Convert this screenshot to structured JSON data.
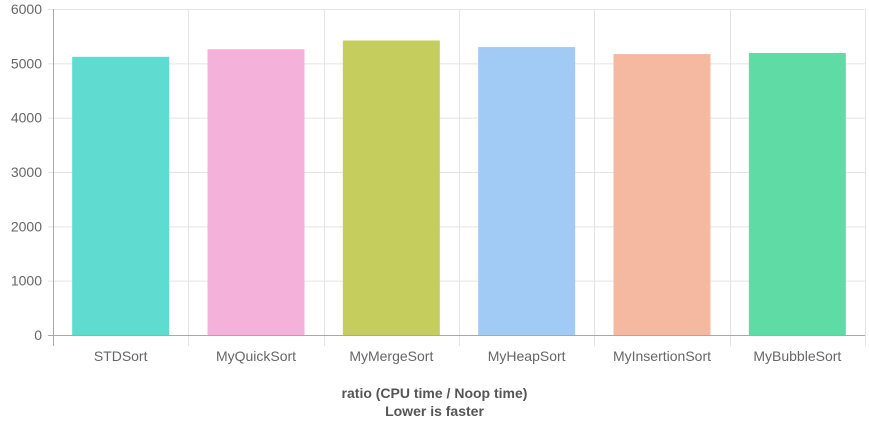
{
  "chart_data": {
    "type": "bar",
    "categories": [
      "STDSort",
      "MyQuickSort",
      "MyMergeSort",
      "MyHeapSort",
      "MyInsertionSort",
      "MyBubbleSort"
    ],
    "values": [
      5120,
      5260,
      5420,
      5300,
      5170,
      5190
    ],
    "colors": [
      "#5fdbcf",
      "#f4b2da",
      "#c5ce5c",
      "#a1caf4",
      "#f5b8a1",
      "#5fdba6"
    ],
    "ylim": [
      0,
      6000
    ],
    "yticks": [
      "0",
      "1000",
      "2000",
      "3000",
      "4000",
      "5000",
      "6000"
    ],
    "xlabel": "ratio (CPU time / Noop time)",
    "xlabel_line2": "Lower is faster",
    "ylabel": "",
    "grid": true,
    "legend": "none"
  }
}
